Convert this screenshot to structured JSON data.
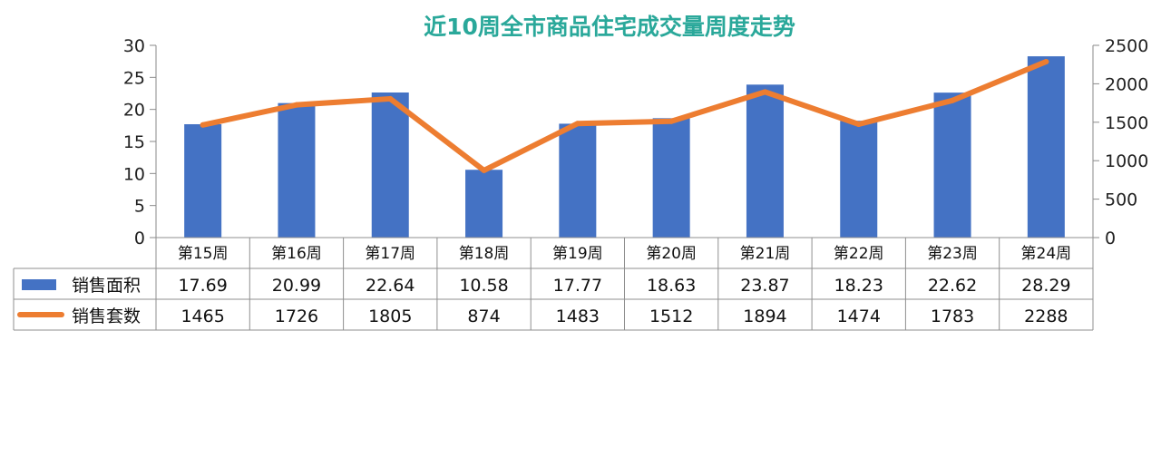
{
  "chart_data": {
    "type": "bar+line",
    "title": "近10周全市商品住宅成交量周度走势",
    "categories": [
      "第15周",
      "第16周",
      "第17周",
      "第18周",
      "第19周",
      "第20周",
      "第21周",
      "第22周",
      "第23周",
      "第24周"
    ],
    "series": [
      {
        "name": "销售面积",
        "type": "bar",
        "axis": "left",
        "color": "#4472C4",
        "values": [
          17.69,
          20.99,
          22.64,
          10.58,
          17.77,
          18.63,
          23.87,
          18.23,
          22.62,
          28.29
        ],
        "labels": [
          "17.69",
          "20.99",
          "22.64",
          "10.58",
          "17.77",
          "18.63",
          "23.87",
          "18.23",
          "22.62",
          "28.29"
        ]
      },
      {
        "name": "销售套数",
        "type": "line",
        "axis": "right",
        "color": "#ED7D31",
        "values": [
          1465,
          1726,
          1805,
          874,
          1483,
          1512,
          1894,
          1474,
          1783,
          2288
        ],
        "labels": [
          "1465",
          "1726",
          "1805",
          "874",
          "1483",
          "1512",
          "1894",
          "1474",
          "1783",
          "2288"
        ]
      }
    ],
    "y_left": {
      "ylim": [
        0,
        30
      ],
      "ticks": [
        "0",
        "5",
        "10",
        "15",
        "20",
        "25",
        "30"
      ]
    },
    "y_right": {
      "ylim": [
        0,
        2500
      ],
      "ticks": [
        "0",
        "500",
        "1000",
        "1500",
        "2000",
        "2500"
      ]
    },
    "grid": false,
    "legend": "data-table",
    "title_color": "#2AA89A"
  }
}
